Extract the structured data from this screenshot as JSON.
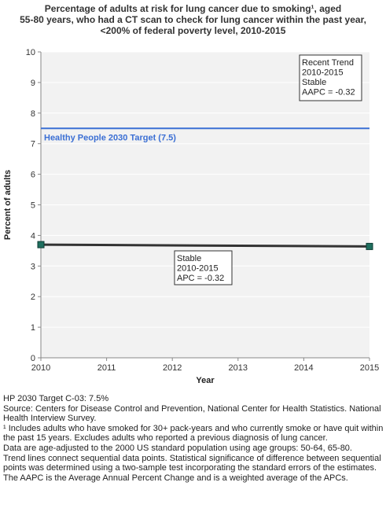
{
  "title_lines": [
    "Percentage of adults at risk for lung cancer due to smoking¹, aged",
    "55-80 years, who had a CT scan to check for lung cancer within the past year,",
    "<200% of federal poverty level,  2010-2015"
  ],
  "chart_data": {
    "type": "line",
    "xlabel": "Year",
    "ylabel": "Percent of adults",
    "xlim": [
      2010,
      2015
    ],
    "ylim": [
      0,
      10
    ],
    "x_ticks": [
      2010,
      2011,
      2012,
      2013,
      2014,
      2015
    ],
    "y_ticks": [
      0,
      1,
      2,
      3,
      4,
      5,
      6,
      7,
      8,
      9,
      10
    ],
    "grid": "horizontal",
    "series": [
      {
        "x": [
          2010,
          2015
        ],
        "y": [
          3.7,
          3.64
        ],
        "color": "#333333"
      }
    ],
    "data_points": [
      {
        "x": 2010,
        "y": 3.7
      },
      {
        "x": 2015,
        "y": 3.64
      }
    ],
    "target": {
      "value": 7.5,
      "label": "Healthy People 2030 Target (7.5)",
      "color": "#3b6fd4"
    },
    "annotations": [
      {
        "lines": [
          "Recent Trend",
          "2010-2015",
          "Stable",
          "AAPC = -0.32"
        ],
        "placement": "top-right"
      },
      {
        "lines": [
          "Stable",
          "2010-2015",
          "APC = -0.32"
        ],
        "placement": "below-line-center"
      }
    ]
  },
  "notes": [
    "HP 2030 Target C-03: 7.5%",
    "Source: Centers for Disease Control and Prevention, National Center for Health Statistics. National Health Interview Survey.",
    "¹ Includes adults who have smoked for 30+ pack-years and who currently smoke or have quit within the past 15 years. Excludes adults who reported a previous diagnosis of lung cancer.",
    "Data are age-adjusted to the 2000 US standard population using age groups: 50-64, 65-80.",
    "Trend lines connect sequential data points. Statistical significance of difference between sequential points was determined using a two-sample test incorporating the standard errors of the estimates.",
    "The AAPC is the Average Annual Percent Change and is a weighted average of the APCs."
  ],
  "colors": {
    "plot_background": "#f2f2f2",
    "grid": "#ffffff",
    "marker": "#1f6f5f"
  }
}
